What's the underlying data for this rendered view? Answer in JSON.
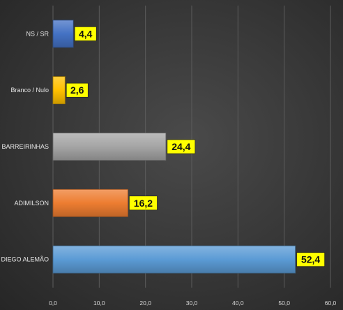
{
  "chart_data": {
    "type": "bar",
    "orientation": "horizontal",
    "categories": [
      "NS / SR",
      "Branco / Nulo",
      "BARREIRINHAS",
      "ADIMILSON",
      "DIEGO ALEMÃO"
    ],
    "values": [
      4.4,
      2.6,
      24.4,
      16.2,
      52.4
    ],
    "value_labels": [
      "4,4",
      "2,6",
      "24,4",
      "16,2",
      "52,4"
    ],
    "bar_colors": [
      "#4472c4",
      "#ffc000",
      "#a5a5a5",
      "#ed7d31",
      "#5b9bd5"
    ],
    "xlim": [
      0,
      60
    ],
    "x_ticks": [
      0,
      10,
      20,
      30,
      40,
      50,
      60
    ],
    "x_tick_labels": [
      "0,0",
      "10,0",
      "20,0",
      "30,0",
      "40,0",
      "50,0",
      "60,0"
    ],
    "grid": true,
    "legend": "none",
    "title": "",
    "xlabel": "",
    "ylabel": "",
    "label_box_color": "#ffff00"
  }
}
